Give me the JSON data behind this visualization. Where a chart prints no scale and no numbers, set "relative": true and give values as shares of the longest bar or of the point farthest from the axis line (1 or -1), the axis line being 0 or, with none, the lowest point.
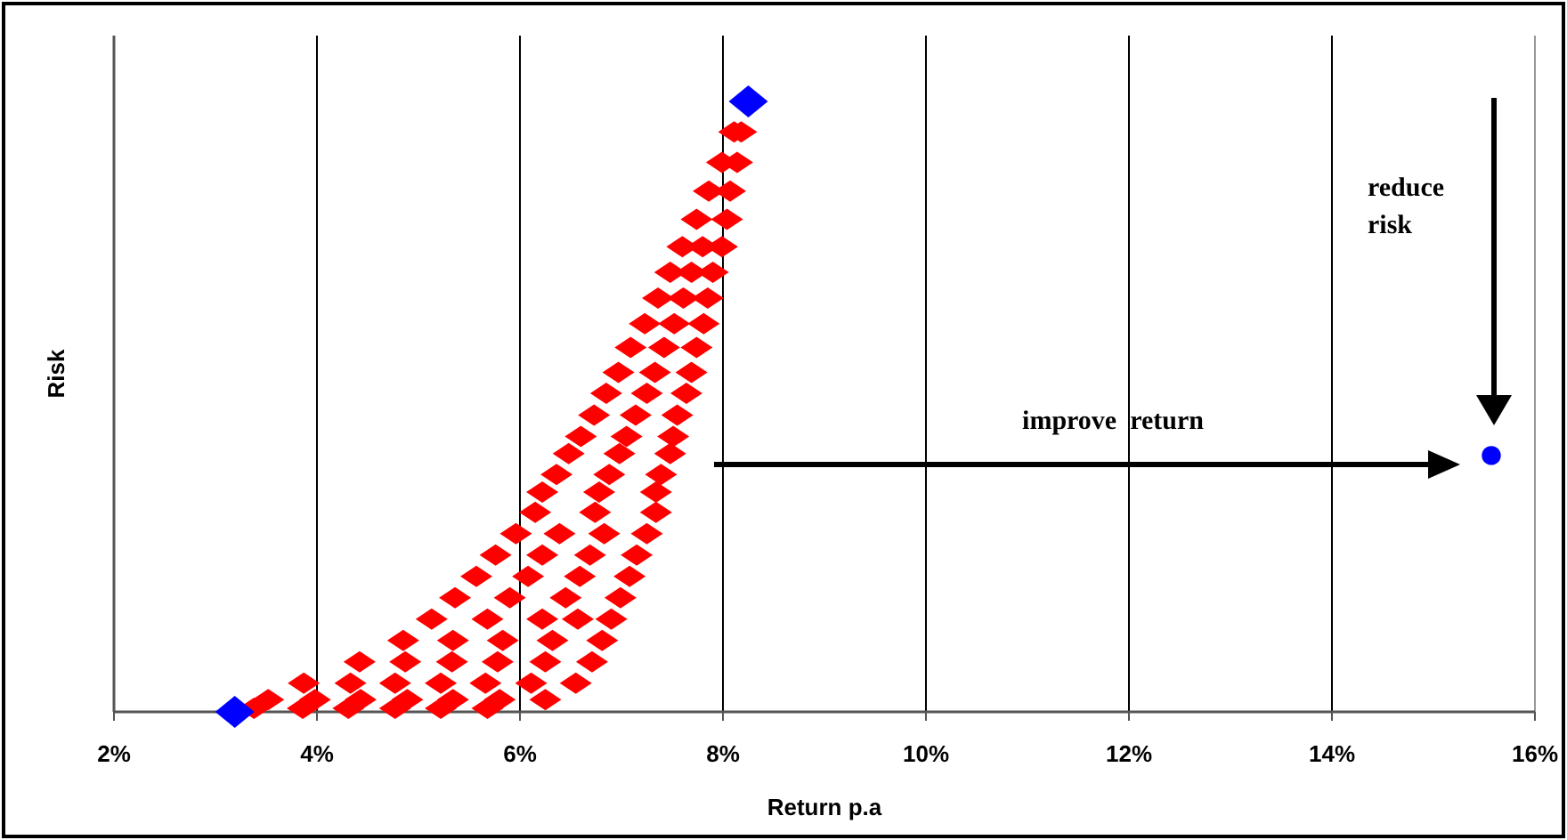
{
  "chart_data": {
    "type": "scatter",
    "xlabel": "Return p.a",
    "ylabel": "Risk",
    "relative": true,
    "grid": "x",
    "xlim": [
      2,
      16
    ],
    "xticks": [
      {
        "value": 2,
        "label": "2%"
      },
      {
        "value": 4,
        "label": "4%"
      },
      {
        "value": 6,
        "label": "6%"
      },
      {
        "value": 8,
        "label": "8%"
      },
      {
        "value": 10,
        "label": "10%"
      },
      {
        "value": 12,
        "label": "12%"
      },
      {
        "value": 14,
        "label": "14%"
      },
      {
        "value": 16,
        "label": "16%"
      }
    ],
    "annotations": [
      "improve  return",
      "reduce\nrisk"
    ],
    "series": [
      {
        "color": "#ff0000",
        "marker": "diamond",
        "x": [
          8.11,
          8.18,
          7.99,
          8.14,
          7.86,
          8.07,
          7.74,
          8.04,
          7.6,
          7.8,
          7.99,
          7.48,
          7.69,
          7.9,
          7.36,
          7.61,
          7.85,
          7.23,
          7.52,
          7.81,
          7.09,
          7.42,
          7.74,
          6.97,
          7.33,
          7.69,
          6.85,
          7.25,
          7.64,
          6.73,
          7.14,
          7.55,
          6.6,
          7.05,
          7.51,
          6.48,
          6.98,
          7.48,
          6.36,
          6.88,
          7.39,
          6.22,
          6.78,
          7.34,
          6.15,
          6.74,
          7.34,
          5.96,
          6.39,
          6.83,
          7.25,
          5.76,
          6.22,
          6.69,
          7.15,
          5.57,
          6.08,
          6.59,
          7.08,
          5.36,
          5.9,
          6.45,
          6.99,
          5.13,
          5.68,
          6.22,
          6.57,
          6.9,
          4.85,
          5.34,
          5.83,
          6.32,
          6.81,
          4.42,
          4.87,
          5.33,
          5.78,
          6.25,
          6.71,
          3.87,
          4.33,
          4.77,
          5.22,
          5.66,
          6.11,
          6.55,
          3.52,
          3.98,
          4.43,
          4.89,
          5.34,
          5.8,
          6.25,
          3.38,
          3.86,
          4.31,
          4.77,
          5.22,
          5.68
        ],
        "values": [
          0.95,
          0.95,
          0.9,
          0.9,
          0.853,
          0.853,
          0.807,
          0.807,
          0.762,
          0.762,
          0.762,
          0.72,
          0.72,
          0.72,
          0.678,
          0.678,
          0.678,
          0.636,
          0.636,
          0.636,
          0.597,
          0.597,
          0.597,
          0.556,
          0.556,
          0.556,
          0.522,
          0.522,
          0.522,
          0.486,
          0.486,
          0.486,
          0.451,
          0.451,
          0.451,
          0.423,
          0.423,
          0.423,
          0.389,
          0.389,
          0.389,
          0.36,
          0.36,
          0.36,
          0.327,
          0.327,
          0.327,
          0.292,
          0.292,
          0.292,
          0.292,
          0.257,
          0.257,
          0.257,
          0.257,
          0.222,
          0.222,
          0.222,
          0.222,
          0.187,
          0.187,
          0.187,
          0.187,
          0.152,
          0.152,
          0.152,
          0.152,
          0.152,
          0.117,
          0.117,
          0.117,
          0.117,
          0.117,
          0.082,
          0.082,
          0.082,
          0.082,
          0.082,
          0.082,
          0.047,
          0.047,
          0.047,
          0.047,
          0.047,
          0.047,
          0.047,
          0.02,
          0.02,
          0.02,
          0.02,
          0.02,
          0.02,
          0.02,
          0.006,
          0.006,
          0.006,
          0.006,
          0.006,
          0.006
        ]
      },
      {
        "color": "#0000ff",
        "marker": "diamond",
        "x": [
          3.19,
          8.25
        ],
        "values": [
          0,
          1
        ]
      },
      {
        "color": "#0000ff",
        "marker": "circle",
        "x": [
          15.57
        ],
        "values": [
          0.42
        ]
      }
    ]
  }
}
